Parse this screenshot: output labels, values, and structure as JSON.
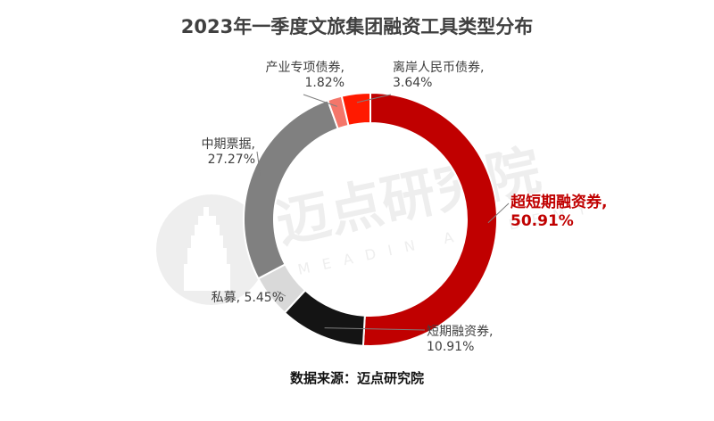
{
  "chart_data": {
    "type": "pie",
    "title": "2023年一季度文旅集团融资工具类型分布",
    "categories": [
      "超短期融资券",
      "短期融资券",
      "私募",
      "中期票据",
      "产业专项债券",
      "离岸人民币债券"
    ],
    "values": [
      50.91,
      10.91,
      5.45,
      27.27,
      1.82,
      3.64
    ],
    "value_labels": [
      "50.91%",
      "10.91%",
      "5.45%",
      "27.27%",
      "1.82%",
      "3.64%"
    ],
    "colors": [
      "#c00000",
      "#141414",
      "#d9d9d9",
      "#808080",
      "#f4766a",
      "#ff1a00"
    ],
    "donut": true,
    "legend": "none",
    "highlight_category": "超短期融资券"
  },
  "footer": {
    "source": "数据来源：迈点研究院"
  },
  "watermark": {
    "text_cn": "迈点研究院",
    "text_en": "MEADIN ACADEMY",
    "icon": "tower-logo-icon"
  }
}
